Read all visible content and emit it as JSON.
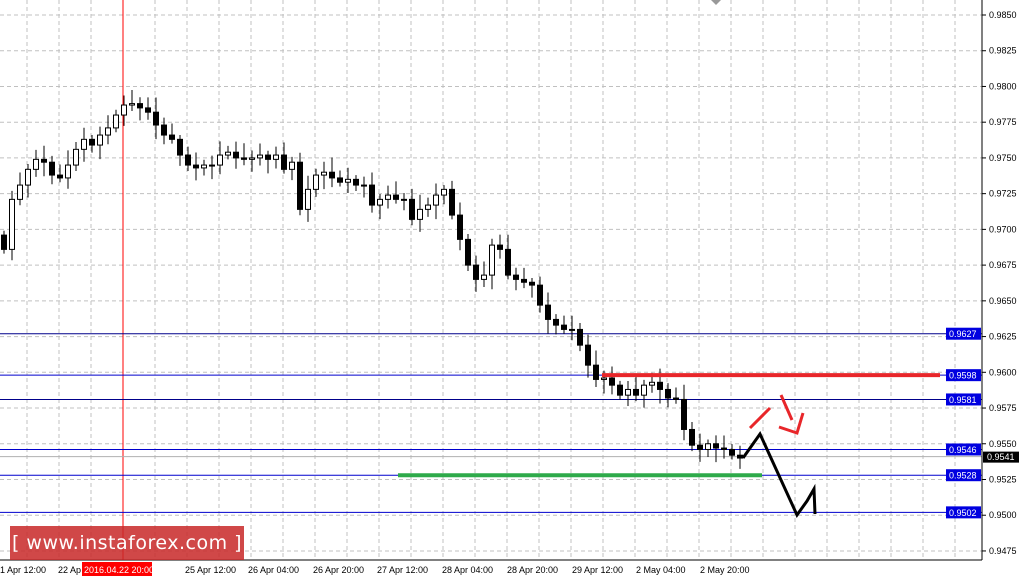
{
  "chart_data": {
    "type": "candlestick",
    "instrument_watermark": "[ www.instaforex.com ]",
    "y_range": [
      0.9465,
      0.986
    ],
    "y_ticks": [
      "0.9850",
      "0.9825",
      "0.9800",
      "0.9775",
      "0.9750",
      "0.9725",
      "0.9700",
      "0.9675",
      "0.9650",
      "0.9625",
      "0.9600",
      "0.9575",
      "0.9550",
      "0.9525",
      "0.9500",
      "0.9475"
    ],
    "x_ticks": [
      "1 Apr 12:00",
      "22 Ap",
      "2016.04.22 20:00",
      "25 Apr 12:00",
      "26 Apr 04:00",
      "26 Apr 20:00",
      "27 Apr 12:00",
      "28 Apr 04:00",
      "28 Apr 20:00",
      "29 Apr 12:00",
      "2 May 04:00",
      "2 May 20:00"
    ],
    "crosshair_time": "2016.04.22 20:00",
    "grid": true,
    "closes": [
      0.9686,
      0.9721,
      0.9731,
      0.9742,
      0.9749,
      0.9747,
      0.9738,
      0.9736,
      0.9745,
      0.9756,
      0.9763,
      0.9759,
      0.9766,
      0.9771,
      0.978,
      0.9787,
      0.9788,
      0.9785,
      0.9782,
      0.9773,
      0.9766,
      0.9763,
      0.9752,
      0.9745,
      0.9743,
      0.9745,
      0.9745,
      0.9752,
      0.9754,
      0.975,
      0.9749,
      0.975,
      0.9752,
      0.9749,
      0.9752,
      0.9742,
      0.9747,
      0.9714,
      0.9728,
      0.9738,
      0.974,
      0.9736,
      0.9733,
      0.9735,
      0.9731,
      0.9731,
      0.9717,
      0.9721,
      0.9724,
      0.9721,
      0.9721,
      0.9707,
      0.9714,
      0.9717,
      0.9724,
      0.9728,
      0.971,
      0.9693,
      0.9675,
      0.9665,
      0.9668,
      0.9689,
      0.9686,
      0.9668,
      0.9665,
      0.9663,
      0.9661,
      0.9647,
      0.9637,
      0.9633,
      0.963,
      0.963,
      0.9619,
      0.9605,
      0.9595,
      0.9596,
      0.9591,
      0.9584,
      0.9588,
      0.9584,
      0.9591,
      0.9593,
      0.9588,
      0.9582,
      0.9581,
      0.956,
      0.9549,
      0.9546,
      0.955,
      0.9547,
      0.9546,
      0.9542,
      0.954
    ],
    "levels": [
      {
        "value": "0.9627",
        "color": "#00008b"
      },
      {
        "value": "0.9598",
        "color": "#0000cd"
      },
      {
        "value": "0.9581",
        "color": "#00008b"
      },
      {
        "value": "0.9546",
        "color": "#0000cd"
      },
      {
        "value": "0.9528",
        "color": "#0000cd"
      },
      {
        "value": "0.9502",
        "color": "#0000cd"
      }
    ],
    "current_price": "0.9541",
    "resistance_zone": {
      "value": 0.9598,
      "color": "#e8262a"
    },
    "support_zone": {
      "value": 0.9528,
      "color": "#2eaa4a"
    }
  }
}
